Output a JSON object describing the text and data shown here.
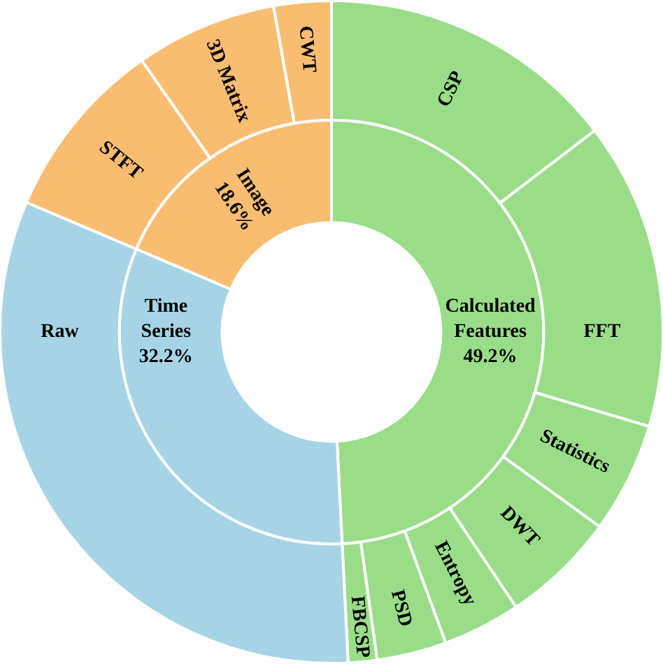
{
  "chart_data": [
    {
      "type": "donut",
      "categories": [
        "Calculated Features",
        "Time Series",
        "Image"
      ],
      "values": [
        49.2,
        32.2,
        18.6
      ],
      "value_labels": [
        "49.2%",
        "32.2%",
        "18.6%"
      ],
      "colors": [
        "#99dd88",
        "#a6d4e6",
        "#f9bd72"
      ]
    },
    {
      "type": "donut",
      "categories": [
        "CSP",
        "FFT",
        "Statistics",
        "DWT",
        "Entropy",
        "PSD",
        "FBCSP",
        "Raw",
        "STFT",
        "3D Matrix",
        "CWT"
      ],
      "values": [
        14.6,
        15.0,
        5.4,
        5.6,
        3.8,
        3.4,
        1.4,
        32.2,
        8.9,
        6.9,
        2.8
      ],
      "colors": [
        "#99dd88",
        "#99dd88",
        "#99dd88",
        "#99dd88",
        "#99dd88",
        "#99dd88",
        "#99dd88",
        "#a6d4e6",
        "#f9bd72",
        "#f9bd72",
        "#f9bd72"
      ]
    }
  ]
}
